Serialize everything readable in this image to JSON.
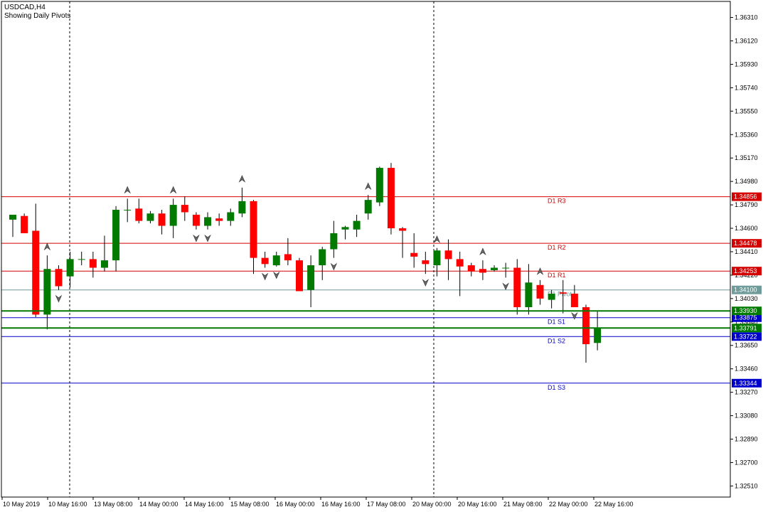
{
  "chart_data": {
    "type": "candlestick",
    "title": "USDCAD,H4",
    "subtitle": "Showing Daily Pivots",
    "ylim": [
      1.3242,
      1.3644
    ],
    "y_ticks": [
      "1.36310",
      "1.36120",
      "1.35930",
      "1.35740",
      "1.35550",
      "1.35360",
      "1.35170",
      "1.34980",
      "1.34790",
      "1.34600",
      "1.34410",
      "1.34220",
      "1.34030",
      "1.33840",
      "1.33650",
      "1.33460",
      "1.33270",
      "1.33080",
      "1.32890",
      "1.32700",
      "1.32510"
    ],
    "x_ticks": [
      "10 May 2019",
      "10 May 16:00",
      "13 May 08:00",
      "14 May 00:00",
      "14 May 16:00",
      "15 May 08:00",
      "16 May 00:00",
      "16 May 16:00",
      "17 May 08:00",
      "20 May 00:00",
      "20 May 16:00",
      "21 May 08:00",
      "22 May 00:00",
      "22 May 16:00"
    ],
    "day_separators": [
      "10 May 16:00",
      "20 May 00:00"
    ],
    "grid": false,
    "colors": {
      "bull": "#007a00",
      "bear": "#ff0000",
      "wick": "#000000"
    },
    "levels": [
      {
        "name": "D1 R3",
        "value": 1.34856,
        "label": "1.34856",
        "color": "#d40000"
      },
      {
        "name": "D1 R2",
        "value": 1.34478,
        "label": "1.34478",
        "color": "#d40000"
      },
      {
        "name": "D1 R1",
        "value": 1.34253,
        "label": "1.34253",
        "color": "#d40000"
      },
      {
        "name": "D1 Pivot",
        "value": 1.341,
        "label": "1.34100",
        "color": "#6f9c9a"
      },
      {
        "name": "D1 S1",
        "value": 1.33875,
        "label": "1.33875",
        "color": "#0000cc"
      },
      {
        "name": "D1 S2",
        "value": 1.33722,
        "label": "1.33722",
        "color": "#0000cc"
      },
      {
        "name": "D1 S3",
        "value": 1.33344,
        "label": "1.33344",
        "color": "#0000cc"
      }
    ],
    "markers": [
      {
        "value": 1.3393,
        "label": "1.33930",
        "color": "#007a00"
      },
      {
        "value": 1.33791,
        "label": "1.33791",
        "color": "#007a00"
      }
    ],
    "candles": [
      {
        "o": 1.3467,
        "h": 1.3471,
        "l": 1.3453,
        "c": 1.3471
      },
      {
        "o": 1.347,
        "h": 1.3472,
        "l": 1.3456,
        "c": 1.3456
      },
      {
        "o": 1.3458,
        "h": 1.348,
        "l": 1.3388,
        "c": 1.339
      },
      {
        "o": 1.339,
        "h": 1.3438,
        "l": 1.3378,
        "c": 1.3427
      },
      {
        "o": 1.3427,
        "h": 1.343,
        "l": 1.341,
        "c": 1.3413
      },
      {
        "o": 1.3421,
        "h": 1.3441,
        "l": 1.3412,
        "c": 1.3435
      },
      {
        "o": 1.3435,
        "h": 1.3441,
        "l": 1.343,
        "c": 1.3435
      },
      {
        "o": 1.3435,
        "h": 1.3441,
        "l": 1.342,
        "c": 1.3428
      },
      {
        "o": 1.3428,
        "h": 1.3454,
        "l": 1.3425,
        "c": 1.3434
      },
      {
        "o": 1.3434,
        "h": 1.3478,
        "l": 1.3425,
        "c": 1.3475
      },
      {
        "o": 1.3475,
        "h": 1.3484,
        "l": 1.3465,
        "c": 1.3475
      },
      {
        "o": 1.3476,
        "h": 1.3484,
        "l": 1.3464,
        "c": 1.3466
      },
      {
        "o": 1.3466,
        "h": 1.3474,
        "l": 1.3464,
        "c": 1.3472
      },
      {
        "o": 1.3472,
        "h": 1.3475,
        "l": 1.3455,
        "c": 1.3462
      },
      {
        "o": 1.3462,
        "h": 1.3484,
        "l": 1.3452,
        "c": 1.3479
      },
      {
        "o": 1.3479,
        "h": 1.3486,
        "l": 1.3466,
        "c": 1.3473
      },
      {
        "o": 1.3471,
        "h": 1.3473,
        "l": 1.3459,
        "c": 1.3462
      },
      {
        "o": 1.3462,
        "h": 1.3473,
        "l": 1.3459,
        "c": 1.3469
      },
      {
        "o": 1.3468,
        "h": 1.3472,
        "l": 1.3462,
        "c": 1.3466
      },
      {
        "o": 1.3466,
        "h": 1.3476,
        "l": 1.3462,
        "c": 1.3473
      },
      {
        "o": 1.3472,
        "h": 1.3493,
        "l": 1.3469,
        "c": 1.3482
      },
      {
        "o": 1.3482,
        "h": 1.3483,
        "l": 1.3423,
        "c": 1.3436
      },
      {
        "o": 1.3436,
        "h": 1.3441,
        "l": 1.3428,
        "c": 1.3431
      },
      {
        "o": 1.343,
        "h": 1.3441,
        "l": 1.3429,
        "c": 1.3438
      },
      {
        "o": 1.3439,
        "h": 1.3452,
        "l": 1.343,
        "c": 1.3434
      },
      {
        "o": 1.3434,
        "h": 1.3436,
        "l": 1.3409,
        "c": 1.3409
      },
      {
        "o": 1.341,
        "h": 1.3438,
        "l": 1.3396,
        "c": 1.343
      },
      {
        "o": 1.343,
        "h": 1.3445,
        "l": 1.3418,
        "c": 1.3443
      },
      {
        "o": 1.3443,
        "h": 1.3466,
        "l": 1.3436,
        "c": 1.3456
      },
      {
        "o": 1.3459,
        "h": 1.3462,
        "l": 1.3451,
        "c": 1.3461
      },
      {
        "o": 1.3459,
        "h": 1.3471,
        "l": 1.3453,
        "c": 1.3466
      },
      {
        "o": 1.3472,
        "h": 1.3487,
        "l": 1.3467,
        "c": 1.3483
      },
      {
        "o": 1.3481,
        "h": 1.351,
        "l": 1.3478,
        "c": 1.3509
      },
      {
        "o": 1.3509,
        "h": 1.3513,
        "l": 1.3455,
        "c": 1.346
      },
      {
        "o": 1.346,
        "h": 1.3461,
        "l": 1.3436,
        "c": 1.3458
      },
      {
        "o": 1.344,
        "h": 1.3456,
        "l": 1.3428,
        "c": 1.3437
      },
      {
        "o": 1.3434,
        "h": 1.3441,
        "l": 1.3423,
        "c": 1.3431
      },
      {
        "o": 1.343,
        "h": 1.3444,
        "l": 1.3421,
        "c": 1.3442
      },
      {
        "o": 1.3442,
        "h": 1.3451,
        "l": 1.3418,
        "c": 1.3435
      },
      {
        "o": 1.3435,
        "h": 1.3441,
        "l": 1.3405,
        "c": 1.3429
      },
      {
        "o": 1.343,
        "h": 1.3432,
        "l": 1.3421,
        "c": 1.3425
      },
      {
        "o": 1.3427,
        "h": 1.3434,
        "l": 1.3418,
        "c": 1.3424
      },
      {
        "o": 1.3426,
        "h": 1.343,
        "l": 1.3425,
        "c": 1.3428
      },
      {
        "o": 1.3428,
        "h": 1.3432,
        "l": 1.342,
        "c": 1.3428
      },
      {
        "o": 1.3428,
        "h": 1.3435,
        "l": 1.339,
        "c": 1.3396
      },
      {
        "o": 1.3396,
        "h": 1.3431,
        "l": 1.339,
        "c": 1.3416
      },
      {
        "o": 1.3414,
        "h": 1.3418,
        "l": 1.3398,
        "c": 1.3403
      },
      {
        "o": 1.3402,
        "h": 1.341,
        "l": 1.3395,
        "c": 1.3407
      },
      {
        "o": 1.3408,
        "h": 1.3418,
        "l": 1.3391,
        "c": 1.3407
      },
      {
        "o": 1.3407,
        "h": 1.3414,
        "l": 1.3396,
        "c": 1.3396
      },
      {
        "o": 1.3396,
        "h": 1.3398,
        "l": 1.3351,
        "c": 1.3366
      },
      {
        "o": 1.3367,
        "h": 1.3393,
        "l": 1.3361,
        "c": 1.3379
      }
    ],
    "fractals_up": [
      3,
      10,
      14,
      20,
      31,
      37,
      41,
      46,
      53
    ],
    "fractals_down": [
      4,
      16,
      17,
      22,
      23,
      28,
      36,
      43,
      49
    ]
  }
}
